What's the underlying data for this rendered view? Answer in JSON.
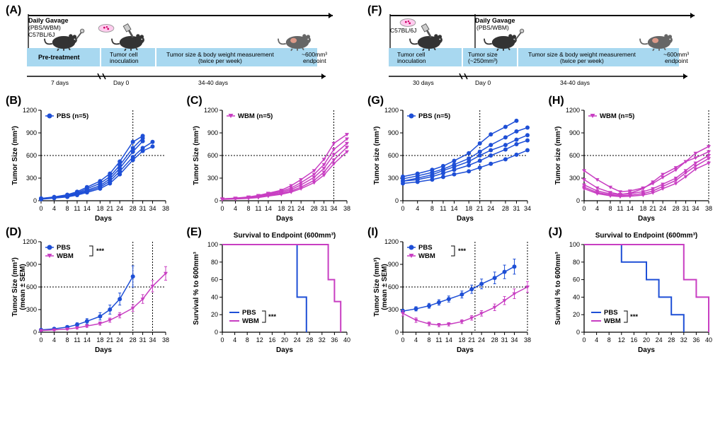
{
  "colors": {
    "pbs": "#1e4fd6",
    "wbm": "#c83ec2",
    "timeline_fill": "#a8d8f0"
  },
  "panelA": {
    "label": "(A)",
    "pretreat": "Pre-treatment",
    "inoc": "Tumor cell\ninoculation",
    "measure": "Tumor size & body weight measurement\n(twice per week)",
    "gavage": "Daily Gavage\n(PBS/WBM)\nC57BL/6J",
    "days7": "7 days",
    "day0": "Day 0",
    "range": "34-40 days",
    "endpoint": "~600mm³\nendpoint"
  },
  "panelF": {
    "label": "(F)",
    "inoc": "Tumor cell\ninoculation",
    "strain": "C57BL/6J",
    "gavage": "Daily Gavage\n(PBS/WBM)",
    "size250": "Tumor size\n(~250mm³)",
    "measure": "Tumor size & body weight measurement\n(twice per week)",
    "days30": "30 days",
    "day0": "Day 0",
    "range": "34-40 days",
    "endpoint": "~600mm³\nendpoint"
  },
  "chartCommon": {
    "xlabel": "Days",
    "ylabel_size": "Tumor Size (mm³)",
    "ylabel_size2": "Tumor size (mm³)",
    "ylabel_mean": "Tumor Size (mm³)\n(mean ± SEM)",
    "ylabel_surv": "Survival % to 600mm³",
    "surv_title": "Survival to Endpoint (600mm³)",
    "pbs_legend": "PBS (n=5)",
    "wbm_legend": "WBM (n=5)",
    "pbs": "PBS",
    "wbm": "WBM",
    "stars": "***"
  },
  "panelB": {
    "label": "(B)",
    "xticks": [
      0,
      4,
      8,
      11,
      14,
      18,
      21,
      24,
      28,
      31,
      34,
      38
    ],
    "yticks": [
      0,
      300,
      600,
      900,
      1200
    ],
    "hline": 600,
    "vline": 28,
    "series": [
      [
        [
          0,
          30
        ],
        [
          4,
          50
        ],
        [
          8,
          80
        ],
        [
          11,
          120
        ],
        [
          14,
          180
        ],
        [
          18,
          260
        ],
        [
          21,
          360
        ],
        [
          24,
          520
        ],
        [
          28,
          780
        ],
        [
          31,
          860
        ]
      ],
      [
        [
          0,
          30
        ],
        [
          4,
          45
        ],
        [
          8,
          70
        ],
        [
          11,
          105
        ],
        [
          14,
          160
        ],
        [
          18,
          230
        ],
        [
          21,
          320
        ],
        [
          24,
          470
        ],
        [
          28,
          700
        ],
        [
          31,
          830
        ]
      ],
      [
        [
          0,
          25
        ],
        [
          4,
          40
        ],
        [
          8,
          60
        ],
        [
          11,
          95
        ],
        [
          14,
          140
        ],
        [
          18,
          200
        ],
        [
          21,
          290
        ],
        [
          24,
          430
        ],
        [
          28,
          650
        ],
        [
          31,
          790
        ]
      ],
      [
        [
          0,
          25
        ],
        [
          4,
          38
        ],
        [
          8,
          55
        ],
        [
          11,
          85
        ],
        [
          14,
          125
        ],
        [
          18,
          180
        ],
        [
          21,
          260
        ],
        [
          24,
          390
        ],
        [
          28,
          580
        ],
        [
          31,
          700
        ],
        [
          34,
          780
        ]
      ],
      [
        [
          0,
          20
        ],
        [
          4,
          35
        ],
        [
          8,
          50
        ],
        [
          11,
          75
        ],
        [
          14,
          110
        ],
        [
          18,
          160
        ],
        [
          21,
          230
        ],
        [
          24,
          350
        ],
        [
          28,
          540
        ],
        [
          31,
          660
        ],
        [
          34,
          720
        ]
      ]
    ]
  },
  "panelC": {
    "label": "(C)",
    "xticks": [
      0,
      4,
      8,
      11,
      14,
      18,
      21,
      24,
      28,
      31,
      34,
      38
    ],
    "yticks": [
      0,
      300,
      600,
      900,
      1200
    ],
    "hline": 600,
    "vline": 34,
    "series": [
      [
        [
          0,
          25
        ],
        [
          4,
          35
        ],
        [
          8,
          50
        ],
        [
          11,
          70
        ],
        [
          14,
          100
        ],
        [
          18,
          140
        ],
        [
          21,
          200
        ],
        [
          24,
          280
        ],
        [
          28,
          400
        ],
        [
          31,
          550
        ],
        [
          34,
          760
        ],
        [
          38,
          880
        ]
      ],
      [
        [
          0,
          25
        ],
        [
          4,
          33
        ],
        [
          8,
          45
        ],
        [
          11,
          62
        ],
        [
          14,
          90
        ],
        [
          18,
          125
        ],
        [
          21,
          170
        ],
        [
          24,
          240
        ],
        [
          28,
          350
        ],
        [
          31,
          480
        ],
        [
          34,
          680
        ],
        [
          38,
          820
        ]
      ],
      [
        [
          0,
          22
        ],
        [
          4,
          30
        ],
        [
          8,
          40
        ],
        [
          11,
          55
        ],
        [
          14,
          80
        ],
        [
          18,
          110
        ],
        [
          21,
          150
        ],
        [
          24,
          210
        ],
        [
          28,
          310
        ],
        [
          31,
          430
        ],
        [
          34,
          610
        ],
        [
          38,
          760
        ]
      ],
      [
        [
          0,
          20
        ],
        [
          4,
          27
        ],
        [
          8,
          36
        ],
        [
          11,
          48
        ],
        [
          14,
          70
        ],
        [
          18,
          95
        ],
        [
          21,
          130
        ],
        [
          24,
          180
        ],
        [
          28,
          270
        ],
        [
          31,
          380
        ],
        [
          34,
          540
        ],
        [
          38,
          710
        ]
      ],
      [
        [
          0,
          18
        ],
        [
          4,
          24
        ],
        [
          8,
          32
        ],
        [
          11,
          42
        ],
        [
          14,
          62
        ],
        [
          18,
          85
        ],
        [
          21,
          115
        ],
        [
          24,
          160
        ],
        [
          28,
          240
        ],
        [
          31,
          340
        ],
        [
          34,
          490
        ],
        [
          38,
          650
        ]
      ]
    ]
  },
  "panelD": {
    "label": "(D)",
    "xticks": [
      0,
      4,
      8,
      11,
      14,
      18,
      21,
      24,
      28,
      31,
      34,
      38
    ],
    "yticks": [
      0,
      300,
      600,
      900,
      1200
    ],
    "hline": 600,
    "vline1": 28,
    "vline2": 34,
    "pbs": [
      [
        0,
        30
      ],
      [
        4,
        45
      ],
      [
        8,
        68
      ],
      [
        11,
        100
      ],
      [
        14,
        145
      ],
      [
        18,
        210
      ],
      [
        21,
        300
      ],
      [
        24,
        440
      ],
      [
        28,
        740
      ]
    ],
    "wbm": [
      [
        0,
        22
      ],
      [
        4,
        30
      ],
      [
        8,
        42
      ],
      [
        11,
        58
      ],
      [
        14,
        82
      ],
      [
        18,
        115
      ],
      [
        21,
        160
      ],
      [
        24,
        225
      ],
      [
        28,
        320
      ],
      [
        31,
        440
      ],
      [
        34,
        610
      ],
      [
        38,
        780
      ]
    ],
    "pbs_err": [
      10,
      14,
      18,
      25,
      35,
      48,
      60,
      80,
      140
    ],
    "wbm_err": [
      8,
      10,
      12,
      15,
      18,
      22,
      28,
      35,
      45,
      58,
      75,
      90
    ]
  },
  "panelE": {
    "label": "(E)",
    "xticks": [
      0,
      4,
      8,
      12,
      16,
      20,
      24,
      28,
      32,
      36,
      40
    ],
    "yticks": [
      0,
      20,
      40,
      60,
      80,
      100
    ],
    "pbs_steps": [
      [
        0,
        100
      ],
      [
        24,
        100
      ],
      [
        24,
        40
      ],
      [
        27,
        40
      ],
      [
        27,
        0
      ]
    ],
    "wbm_steps": [
      [
        0,
        100
      ],
      [
        34,
        100
      ],
      [
        34,
        60
      ],
      [
        36,
        60
      ],
      [
        36,
        35
      ],
      [
        38,
        35
      ],
      [
        38,
        0
      ]
    ]
  },
  "panelG": {
    "label": "(G)",
    "xticks": [
      0,
      4,
      8,
      11,
      14,
      18,
      21,
      24,
      28,
      31,
      34
    ],
    "yticks": [
      0,
      300,
      600,
      900,
      1200
    ],
    "hline": 600,
    "vline": 21,
    "series": [
      [
        [
          0,
          320
        ],
        [
          4,
          360
        ],
        [
          8,
          410
        ],
        [
          11,
          460
        ],
        [
          14,
          530
        ],
        [
          18,
          630
        ],
        [
          21,
          760
        ],
        [
          24,
          880
        ],
        [
          28,
          980
        ],
        [
          31,
          1060
        ]
      ],
      [
        [
          0,
          290
        ],
        [
          4,
          330
        ],
        [
          8,
          375
        ],
        [
          11,
          420
        ],
        [
          14,
          480
        ],
        [
          18,
          560
        ],
        [
          21,
          650
        ],
        [
          24,
          740
        ],
        [
          28,
          840
        ],
        [
          31,
          920
        ],
        [
          34,
          970
        ]
      ],
      [
        [
          0,
          260
        ],
        [
          4,
          300
        ],
        [
          8,
          345
        ],
        [
          11,
          400
        ],
        [
          14,
          450
        ],
        [
          18,
          520
        ],
        [
          21,
          600
        ],
        [
          24,
          670
        ],
        [
          28,
          740
        ],
        [
          31,
          810
        ],
        [
          34,
          870
        ]
      ],
      [
        [
          0,
          260
        ],
        [
          4,
          280
        ],
        [
          8,
          320
        ],
        [
          11,
          365
        ],
        [
          14,
          410
        ],
        [
          18,
          470
        ],
        [
          21,
          530
        ],
        [
          24,
          600
        ],
        [
          28,
          680
        ],
        [
          31,
          750
        ],
        [
          34,
          800
        ]
      ],
      [
        [
          0,
          230
        ],
        [
          4,
          250
        ],
        [
          8,
          280
        ],
        [
          11,
          315
        ],
        [
          14,
          350
        ],
        [
          18,
          390
        ],
        [
          21,
          440
        ],
        [
          24,
          490
        ],
        [
          28,
          550
        ],
        [
          31,
          610
        ],
        [
          34,
          670
        ]
      ]
    ]
  },
  "panelH": {
    "label": "(H)",
    "xticks": [
      0,
      4,
      8,
      11,
      14,
      18,
      21,
      24,
      28,
      31,
      34,
      38
    ],
    "yticks": [
      0,
      300,
      600,
      900,
      1200
    ],
    "hline": 600,
    "vline": 38,
    "series": [
      [
        [
          0,
          400
        ],
        [
          4,
          280
        ],
        [
          8,
          180
        ],
        [
          11,
          120
        ],
        [
          14,
          130
        ],
        [
          18,
          170
        ],
        [
          21,
          230
        ],
        [
          24,
          310
        ],
        [
          28,
          410
        ],
        [
          31,
          520
        ],
        [
          34,
          630
        ],
        [
          38,
          720
        ]
      ],
      [
        [
          0,
          280
        ],
        [
          4,
          170
        ],
        [
          8,
          110
        ],
        [
          11,
          85
        ],
        [
          14,
          100
        ],
        [
          18,
          160
        ],
        [
          21,
          250
        ],
        [
          24,
          350
        ],
        [
          28,
          440
        ],
        [
          31,
          520
        ],
        [
          34,
          570
        ],
        [
          38,
          650
        ]
      ],
      [
        [
          0,
          210
        ],
        [
          4,
          130
        ],
        [
          8,
          90
        ],
        [
          11,
          80
        ],
        [
          14,
          95
        ],
        [
          18,
          120
        ],
        [
          21,
          160
        ],
        [
          24,
          220
        ],
        [
          28,
          300
        ],
        [
          31,
          400
        ],
        [
          34,
          500
        ],
        [
          38,
          600
        ]
      ],
      [
        [
          0,
          180
        ],
        [
          4,
          110
        ],
        [
          8,
          75
        ],
        [
          11,
          65
        ],
        [
          14,
          75
        ],
        [
          18,
          95
        ],
        [
          21,
          130
        ],
        [
          24,
          190
        ],
        [
          28,
          270
        ],
        [
          31,
          370
        ],
        [
          34,
          460
        ],
        [
          38,
          560
        ]
      ],
      [
        [
          0,
          160
        ],
        [
          4,
          95
        ],
        [
          8,
          65
        ],
        [
          11,
          55
        ],
        [
          14,
          60
        ],
        [
          18,
          75
        ],
        [
          21,
          105
        ],
        [
          24,
          160
        ],
        [
          28,
          230
        ],
        [
          31,
          320
        ],
        [
          34,
          420
        ],
        [
          38,
          500
        ]
      ]
    ]
  },
  "panelI": {
    "label": "(I)",
    "xticks": [
      0,
      4,
      8,
      11,
      14,
      18,
      21,
      24,
      28,
      31,
      34,
      38
    ],
    "yticks": [
      0,
      300,
      600,
      900,
      1200
    ],
    "hline": 600,
    "vline1": 22,
    "vline2": 38,
    "pbs": [
      [
        0,
        280
      ],
      [
        4,
        310
      ],
      [
        8,
        350
      ],
      [
        11,
        395
      ],
      [
        14,
        440
      ],
      [
        18,
        500
      ],
      [
        21,
        570
      ],
      [
        24,
        640
      ],
      [
        28,
        720
      ],
      [
        31,
        800
      ],
      [
        34,
        870
      ]
    ],
    "wbm": [
      [
        0,
        250
      ],
      [
        4,
        160
      ],
      [
        8,
        110
      ],
      [
        11,
        95
      ],
      [
        14,
        105
      ],
      [
        18,
        140
      ],
      [
        21,
        190
      ],
      [
        24,
        250
      ],
      [
        28,
        330
      ],
      [
        31,
        420
      ],
      [
        34,
        510
      ],
      [
        38,
        600
      ]
    ],
    "pbs_err": [
      25,
      28,
      32,
      36,
      40,
      46,
      55,
      65,
      78,
      90,
      100
    ],
    "wbm_err": [
      35,
      30,
      25,
      22,
      22,
      25,
      30,
      36,
      44,
      54,
      64,
      72
    ]
  },
  "panelJ": {
    "label": "(J)",
    "xticks": [
      0,
      4,
      8,
      12,
      16,
      20,
      24,
      28,
      32,
      36,
      40
    ],
    "yticks": [
      0,
      20,
      40,
      60,
      80,
      100
    ],
    "pbs_steps": [
      [
        0,
        100
      ],
      [
        12,
        100
      ],
      [
        12,
        80
      ],
      [
        20,
        80
      ],
      [
        20,
        60
      ],
      [
        24,
        60
      ],
      [
        24,
        40
      ],
      [
        28,
        40
      ],
      [
        28,
        20
      ],
      [
        32,
        20
      ],
      [
        32,
        0
      ]
    ],
    "wbm_steps": [
      [
        0,
        100
      ],
      [
        32,
        100
      ],
      [
        32,
        60
      ],
      [
        36,
        60
      ],
      [
        36,
        40
      ],
      [
        40,
        40
      ],
      [
        40,
        0
      ]
    ]
  }
}
